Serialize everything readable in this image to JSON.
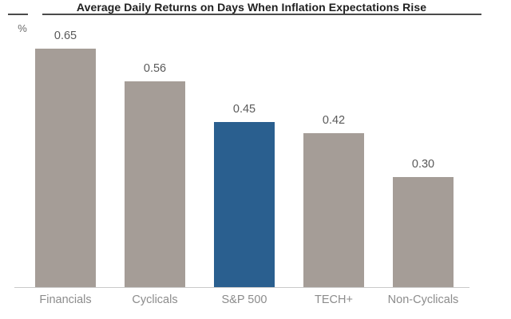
{
  "title": "Average Daily Returns on Days When Inflation Expectations Rise",
  "y_axis_unit": "%",
  "colors": {
    "bar_default": "#a59d97",
    "bar_highlight": "#2a5f8f",
    "axis_line": "#c9c9c9",
    "title_rule": "#4a4a4a",
    "title_text": "#1f1f1f",
    "value_label": "#595959",
    "category_label": "#8c8c8c",
    "background": "#ffffff"
  },
  "chart_data": {
    "type": "bar",
    "title": "Average Daily Returns on Days When Inflation Expectations Rise",
    "categories": [
      "Financials",
      "Cyclicals",
      "S&P 500",
      "TECH+",
      "Non-Cyclicals"
    ],
    "values": [
      0.65,
      0.56,
      0.45,
      0.42,
      0.3
    ],
    "value_labels": [
      "0.65",
      "0.56",
      "0.45",
      "0.42",
      "0.30"
    ],
    "highlighted_category": "S&P 500",
    "xlabel": "",
    "ylabel": "%",
    "ylim": [
      0,
      0.78
    ],
    "grid": false,
    "legend": false,
    "value_labels_shown": true
  }
}
